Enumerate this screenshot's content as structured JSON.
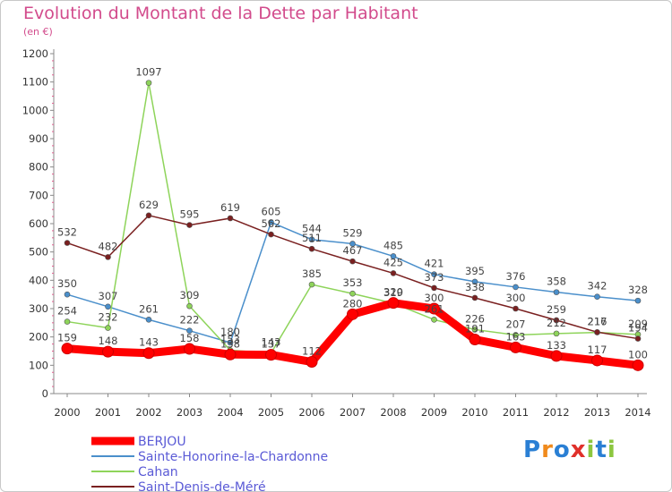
{
  "header": {
    "title": "Evolution du Montant de la Dette par Habitant",
    "subtitle": "(en €)"
  },
  "logo": {
    "letters": [
      "P",
      "r",
      "o",
      "x",
      "i",
      "t",
      "i"
    ],
    "colors": [
      "#2a7fd4",
      "#f08a1c",
      "#2a7fd4",
      "#e0302a",
      "#8cc63f",
      "#2a7fd4",
      "#8cc63f"
    ]
  },
  "chart_data": {
    "type": "line",
    "title": "Evolution du Montant de la Dette par Habitant",
    "subtitle": "(en €)",
    "x": [
      "2000",
      "2001",
      "2002",
      "2003",
      "2004",
      "2005",
      "2006",
      "2007",
      "2008",
      "2009",
      "2010",
      "2011",
      "2012",
      "2013",
      "2014"
    ],
    "ylim": [
      0,
      1200
    ],
    "yticks": [
      0,
      100,
      200,
      300,
      400,
      500,
      600,
      700,
      800,
      900,
      1000,
      1100,
      1200
    ],
    "grid": false,
    "legend_position": "bottom-left",
    "series": [
      {
        "name": "BERJOU",
        "color": "#ff0000",
        "values": [
          159,
          148,
          143,
          158,
          138,
          137,
          112,
          280,
          320,
          300,
          191,
          163,
          133,
          117,
          100
        ]
      },
      {
        "name": "Sainte-Honorine-la-Chardonne",
        "color": "#4a8fcb",
        "values": [
          350,
          307,
          261,
          222,
          180,
          605,
          544,
          529,
          485,
          421,
          395,
          376,
          358,
          342,
          328
        ]
      },
      {
        "name": "Cahan",
        "color": "#8ed45a",
        "values": [
          254,
          232,
          1097,
          309,
          153,
          143,
          385,
          353,
          319,
          261,
          226,
          207,
          212,
          216,
          209
        ]
      },
      {
        "name": "Saint-Denis-de-Méré",
        "color": "#7a2020",
        "values": [
          532,
          482,
          629,
          595,
          619,
          562,
          511,
          467,
          425,
          373,
          338,
          300,
          259,
          217,
          194
        ]
      }
    ]
  }
}
